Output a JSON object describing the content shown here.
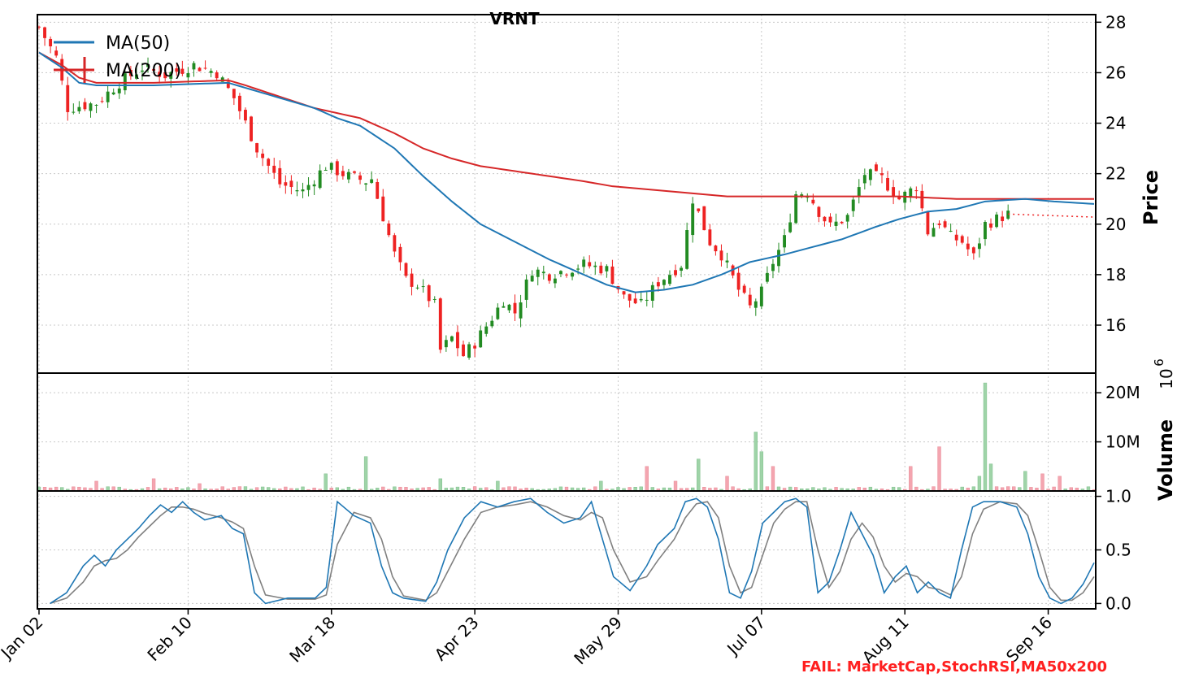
{
  "chart_data": {
    "type": "candlestick",
    "title": "VRNT",
    "ylabel_price": "Price",
    "ylabel_volume": "Volume",
    "volume_exponent_base": "10",
    "volume_exponent_power": "6",
    "footer_text": "FAIL: MarketCap,StochRSI,MA50x200",
    "x_tick_labels": [
      "Jan 02",
      "Feb 10",
      "Mar 18",
      "Apr 23",
      "May 29",
      "Jul 07",
      "Aug 11",
      "Sep 16"
    ],
    "x_tick_index": [
      0,
      26,
      51,
      76,
      101,
      126,
      151,
      176
    ],
    "n_days": 185,
    "price_ylim": [
      14.1,
      28.3
    ],
    "price_ticks": [
      "16",
      "18",
      "20",
      "22",
      "24",
      "26",
      "28"
    ],
    "volume_ylim": [
      0,
      24000000
    ],
    "volume_ticks": [
      "10M",
      "20M"
    ],
    "stoch_ylim": [
      -0.05,
      1.05
    ],
    "stoch_ticks": [
      "0.0",
      "0.5",
      "1.0"
    ],
    "grid": true,
    "legend": [
      {
        "name": "MA(50)",
        "color": "#1f77b4"
      },
      {
        "name": "MA(200)",
        "color": "#d62728"
      }
    ],
    "colors": {
      "up": "#228B22",
      "down": "#ee2222",
      "vol_up": "#9fd4a8",
      "vol_down": "#f4a5b0",
      "k_line": "#1f77b4",
      "d_line": "#808080"
    },
    "price_path": [
      [
        0,
        27.8
      ],
      [
        3,
        26.6
      ],
      [
        5,
        24.6
      ],
      [
        10,
        24.8
      ],
      [
        14,
        25.6
      ],
      [
        18,
        26.2
      ],
      [
        22,
        25.9
      ],
      [
        27,
        26.3
      ],
      [
        31,
        26.0
      ],
      [
        34,
        25.0
      ],
      [
        38,
        23.0
      ],
      [
        42,
        21.6
      ],
      [
        46,
        21.3
      ],
      [
        50,
        22.3
      ],
      [
        54,
        21.9
      ],
      [
        57,
        21.7
      ],
      [
        58,
        21.8
      ],
      [
        62,
        18.8
      ],
      [
        64,
        17.8
      ],
      [
        66,
        17.6
      ],
      [
        69,
        16.8
      ],
      [
        70,
        15.0
      ],
      [
        72,
        15.5
      ],
      [
        74,
        14.8
      ],
      [
        76,
        15.3
      ],
      [
        79,
        16.3
      ],
      [
        81,
        17.0
      ],
      [
        83,
        16.5
      ],
      [
        86,
        18.2
      ],
      [
        89,
        18.0
      ],
      [
        92,
        18.2
      ],
      [
        95,
        18.4
      ],
      [
        99,
        18.2
      ],
      [
        102,
        17.1
      ],
      [
        105,
        16.8
      ],
      [
        108,
        17.7
      ],
      [
        112,
        18.4
      ],
      [
        114,
        21.0
      ],
      [
        117,
        19.3
      ],
      [
        119,
        18.8
      ],
      [
        122,
        17.4
      ],
      [
        124,
        16.7
      ],
      [
        126,
        17.3
      ],
      [
        128,
        18.5
      ],
      [
        130,
        19.4
      ],
      [
        132,
        21.2
      ],
      [
        134,
        21.3
      ],
      [
        136,
        20.5
      ],
      [
        138,
        19.9
      ],
      [
        141,
        20.3
      ],
      [
        144,
        22.0
      ],
      [
        147,
        21.8
      ],
      [
        150,
        21.0
      ],
      [
        153,
        21.5
      ],
      [
        155,
        19.7
      ],
      [
        157,
        20.1
      ],
      [
        159,
        19.5
      ],
      [
        161,
        19.3
      ],
      [
        163,
        18.7
      ],
      [
        165,
        20.0
      ],
      [
        167,
        20.2
      ],
      [
        169,
        20.4
      ]
    ],
    "ma50": [
      [
        0,
        26.8
      ],
      [
        4,
        26.2
      ],
      [
        7,
        25.6
      ],
      [
        10,
        25.5
      ],
      [
        20,
        25.5
      ],
      [
        33,
        25.6
      ],
      [
        36,
        25.4
      ],
      [
        48,
        24.6
      ],
      [
        52,
        24.2
      ],
      [
        56,
        23.9
      ],
      [
        62,
        23.0
      ],
      [
        67,
        21.9
      ],
      [
        72,
        20.9
      ],
      [
        77,
        20.0
      ],
      [
        83,
        19.3
      ],
      [
        89,
        18.6
      ],
      [
        95,
        18.0
      ],
      [
        99,
        17.6
      ],
      [
        104,
        17.3
      ],
      [
        109,
        17.4
      ],
      [
        114,
        17.6
      ],
      [
        119,
        18.0
      ],
      [
        124,
        18.5
      ],
      [
        130,
        18.8
      ],
      [
        135,
        19.1
      ],
      [
        140,
        19.4
      ],
      [
        146,
        19.9
      ],
      [
        150,
        20.2
      ],
      [
        155,
        20.5
      ],
      [
        160,
        20.6
      ],
      [
        165,
        20.9
      ],
      [
        172,
        21.0
      ],
      [
        177,
        20.9
      ],
      [
        184,
        20.8
      ]
    ],
    "ma200": [
      [
        0,
        26.8
      ],
      [
        4,
        26.3
      ],
      [
        7,
        25.8
      ],
      [
        10,
        25.6
      ],
      [
        20,
        25.6
      ],
      [
        33,
        25.7
      ],
      [
        36,
        25.5
      ],
      [
        48,
        24.6
      ],
      [
        52,
        24.4
      ],
      [
        56,
        24.2
      ],
      [
        62,
        23.6
      ],
      [
        67,
        23.0
      ],
      [
        72,
        22.6
      ],
      [
        77,
        22.3
      ],
      [
        83,
        22.1
      ],
      [
        89,
        21.9
      ],
      [
        95,
        21.7
      ],
      [
        100,
        21.5
      ],
      [
        110,
        21.3
      ],
      [
        120,
        21.1
      ],
      [
        130,
        21.1
      ],
      [
        140,
        21.1
      ],
      [
        150,
        21.1
      ],
      [
        160,
        21.0
      ],
      [
        170,
        21.0
      ],
      [
        184,
        21.0
      ]
    ],
    "stoch_k": [
      [
        2,
        0.0
      ],
      [
        5,
        0.1
      ],
      [
        8,
        0.35
      ],
      [
        10,
        0.45
      ],
      [
        12,
        0.35
      ],
      [
        14,
        0.5
      ],
      [
        16,
        0.6
      ],
      [
        18,
        0.7
      ],
      [
        20,
        0.82
      ],
      [
        22,
        0.92
      ],
      [
        24,
        0.85
      ],
      [
        26,
        0.95
      ],
      [
        28,
        0.85
      ],
      [
        30,
        0.78
      ],
      [
        33,
        0.82
      ],
      [
        35,
        0.7
      ],
      [
        37,
        0.65
      ],
      [
        39,
        0.1
      ],
      [
        41,
        0.0
      ],
      [
        45,
        0.05
      ],
      [
        50,
        0.05
      ],
      [
        52,
        0.15
      ],
      [
        54,
        0.95
      ],
      [
        57,
        0.82
      ],
      [
        60,
        0.75
      ],
      [
        62,
        0.35
      ],
      [
        64,
        0.1
      ],
      [
        66,
        0.05
      ],
      [
        70,
        0.02
      ],
      [
        72,
        0.2
      ],
      [
        74,
        0.5
      ],
      [
        77,
        0.8
      ],
      [
        80,
        0.95
      ],
      [
        83,
        0.9
      ],
      [
        86,
        0.95
      ],
      [
        89,
        0.98
      ],
      [
        92,
        0.85
      ],
      [
        95,
        0.75
      ],
      [
        98,
        0.8
      ],
      [
        100,
        0.95
      ],
      [
        102,
        0.6
      ],
      [
        104,
        0.25
      ],
      [
        107,
        0.12
      ],
      [
        110,
        0.35
      ],
      [
        112,
        0.55
      ],
      [
        115,
        0.7
      ],
      [
        117,
        0.95
      ],
      [
        119,
        0.98
      ],
      [
        121,
        0.9
      ],
      [
        123,
        0.6
      ],
      [
        125,
        0.1
      ],
      [
        127,
        0.05
      ],
      [
        129,
        0.3
      ],
      [
        131,
        0.75
      ],
      [
        133,
        0.85
      ],
      [
        135,
        0.95
      ],
      [
        137,
        0.98
      ],
      [
        139,
        0.9
      ],
      [
        141,
        0.1
      ],
      [
        143,
        0.2
      ],
      [
        145,
        0.5
      ],
      [
        147,
        0.85
      ],
      [
        149,
        0.65
      ],
      [
        151,
        0.45
      ],
      [
        153,
        0.1
      ],
      [
        155,
        0.25
      ],
      [
        157,
        0.35
      ],
      [
        159,
        0.1
      ],
      [
        161,
        0.2
      ],
      [
        163,
        0.1
      ],
      [
        165,
        0.05
      ],
      [
        167,
        0.5
      ],
      [
        169,
        0.9
      ],
      [
        171,
        0.95
      ],
      [
        174,
        0.95
      ],
      [
        177,
        0.9
      ],
      [
        179,
        0.65
      ],
      [
        181,
        0.25
      ],
      [
        183,
        0.05
      ],
      [
        185,
        0.0
      ],
      [
        187,
        0.05
      ],
      [
        189,
        0.18
      ],
      [
        191,
        0.38
      ]
    ],
    "stoch_d": [
      [
        2,
        0.0
      ],
      [
        5,
        0.05
      ],
      [
        8,
        0.2
      ],
      [
        10,
        0.35
      ],
      [
        12,
        0.4
      ],
      [
        14,
        0.42
      ],
      [
        16,
        0.5
      ],
      [
        18,
        0.62
      ],
      [
        20,
        0.72
      ],
      [
        22,
        0.82
      ],
      [
        24,
        0.9
      ],
      [
        26,
        0.9
      ],
      [
        28,
        0.88
      ],
      [
        30,
        0.84
      ],
      [
        33,
        0.8
      ],
      [
        35,
        0.76
      ],
      [
        37,
        0.7
      ],
      [
        39,
        0.35
      ],
      [
        41,
        0.08
      ],
      [
        45,
        0.04
      ],
      [
        50,
        0.04
      ],
      [
        52,
        0.08
      ],
      [
        54,
        0.55
      ],
      [
        57,
        0.85
      ],
      [
        60,
        0.8
      ],
      [
        62,
        0.6
      ],
      [
        64,
        0.25
      ],
      [
        66,
        0.07
      ],
      [
        70,
        0.03
      ],
      [
        72,
        0.1
      ],
      [
        74,
        0.3
      ],
      [
        77,
        0.6
      ],
      [
        80,
        0.85
      ],
      [
        83,
        0.9
      ],
      [
        86,
        0.92
      ],
      [
        89,
        0.95
      ],
      [
        92,
        0.9
      ],
      [
        95,
        0.82
      ],
      [
        98,
        0.78
      ],
      [
        100,
        0.85
      ],
      [
        102,
        0.8
      ],
      [
        104,
        0.5
      ],
      [
        107,
        0.2
      ],
      [
        110,
        0.25
      ],
      [
        112,
        0.4
      ],
      [
        115,
        0.6
      ],
      [
        117,
        0.8
      ],
      [
        119,
        0.93
      ],
      [
        121,
        0.95
      ],
      [
        123,
        0.8
      ],
      [
        125,
        0.35
      ],
      [
        127,
        0.1
      ],
      [
        129,
        0.15
      ],
      [
        131,
        0.45
      ],
      [
        133,
        0.75
      ],
      [
        135,
        0.88
      ],
      [
        137,
        0.95
      ],
      [
        139,
        0.95
      ],
      [
        141,
        0.5
      ],
      [
        143,
        0.15
      ],
      [
        145,
        0.3
      ],
      [
        147,
        0.6
      ],
      [
        149,
        0.75
      ],
      [
        151,
        0.62
      ],
      [
        153,
        0.35
      ],
      [
        155,
        0.2
      ],
      [
        157,
        0.28
      ],
      [
        159,
        0.25
      ],
      [
        161,
        0.15
      ],
      [
        163,
        0.13
      ],
      [
        165,
        0.08
      ],
      [
        167,
        0.25
      ],
      [
        169,
        0.65
      ],
      [
        171,
        0.88
      ],
      [
        174,
        0.95
      ],
      [
        177,
        0.93
      ],
      [
        179,
        0.82
      ],
      [
        181,
        0.5
      ],
      [
        183,
        0.15
      ],
      [
        185,
        0.03
      ],
      [
        187,
        0.03
      ],
      [
        189,
        0.1
      ],
      [
        191,
        0.25
      ]
    ],
    "volume_spikes": [
      [
        10,
        2.0
      ],
      [
        20,
        2.5
      ],
      [
        28,
        1.5
      ],
      [
        50,
        3.5
      ],
      [
        57,
        7.0
      ],
      [
        70,
        2.5
      ],
      [
        80,
        2.0
      ],
      [
        98,
        2.0
      ],
      [
        106,
        5.0
      ],
      [
        111,
        2.0
      ],
      [
        115,
        6.5
      ],
      [
        120,
        3.0
      ],
      [
        125,
        12.0
      ],
      [
        126,
        8.0
      ],
      [
        128,
        5.0
      ],
      [
        152,
        5.0
      ],
      [
        157,
        9.0
      ],
      [
        164,
        3.0
      ],
      [
        165,
        22.0
      ],
      [
        166,
        5.5
      ],
      [
        172,
        4.0
      ],
      [
        175,
        3.5
      ],
      [
        178,
        3.0
      ]
    ],
    "volume_base_million": 0.6
  }
}
